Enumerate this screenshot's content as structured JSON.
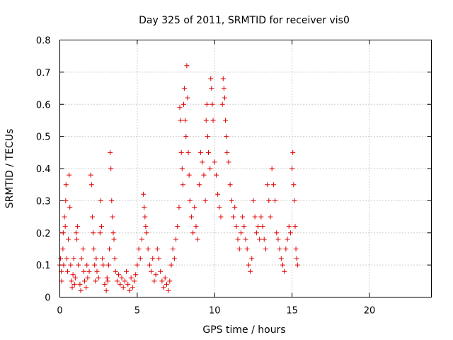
{
  "chart_data": {
    "type": "scatter",
    "title": "Day 325 of 2011, SRMTID for receiver vis0",
    "xlabel": "GPS time / hours",
    "ylabel": "SRMTID / TECUs",
    "xlim": [
      0,
      24
    ],
    "ylim": [
      0,
      0.8
    ],
    "xticks": [
      0,
      5,
      10,
      15,
      20
    ],
    "xtick_labels": [
      "0",
      "5",
      "10",
      "15",
      "20"
    ],
    "yticks": [
      0,
      0.1,
      0.2,
      0.3,
      0.4,
      0.5,
      0.6,
      0.7,
      0.8
    ],
    "ytick_labels": [
      "0",
      "0.1",
      "0.2",
      "0.3",
      "0.4",
      "0.5",
      "0.6",
      "0.7",
      "0.8"
    ],
    "grid": true,
    "marker": "+",
    "color": "#e00000",
    "series": [
      {
        "name": "vis0",
        "points": [
          [
            0.0,
            0.1
          ],
          [
            0.05,
            0.12
          ],
          [
            0.1,
            0.08
          ],
          [
            0.12,
            0.05
          ],
          [
            0.2,
            0.15
          ],
          [
            0.22,
            0.2
          ],
          [
            0.25,
            0.1
          ],
          [
            0.3,
            0.25
          ],
          [
            0.35,
            0.22
          ],
          [
            0.38,
            0.3
          ],
          [
            0.4,
            0.35
          ],
          [
            0.45,
            0.12
          ],
          [
            0.5,
            0.08
          ],
          [
            0.55,
            0.18
          ],
          [
            0.6,
            0.38
          ],
          [
            0.65,
            0.28
          ],
          [
            0.7,
            0.1
          ],
          [
            0.75,
            0.05
          ],
          [
            0.8,
            0.03
          ],
          [
            0.85,
            0.07
          ],
          [
            0.9,
            0.12
          ],
          [
            0.95,
            0.04
          ],
          [
            1.0,
            0.06
          ],
          [
            1.05,
            0.2
          ],
          [
            1.1,
            0.18
          ],
          [
            1.15,
            0.22
          ],
          [
            1.2,
            0.1
          ],
          [
            1.3,
            0.04
          ],
          [
            1.35,
            0.02
          ],
          [
            1.4,
            0.12
          ],
          [
            1.5,
            0.15
          ],
          [
            1.55,
            0.08
          ],
          [
            1.6,
            0.05
          ],
          [
            1.7,
            0.03
          ],
          [
            1.75,
            0.1
          ],
          [
            1.8,
            0.06
          ],
          [
            1.9,
            0.08
          ],
          [
            2.0,
            0.38
          ],
          [
            2.05,
            0.35
          ],
          [
            2.1,
            0.25
          ],
          [
            2.15,
            0.2
          ],
          [
            2.2,
            0.15
          ],
          [
            2.25,
            0.1
          ],
          [
            2.3,
            0.05
          ],
          [
            2.35,
            0.12
          ],
          [
            2.4,
            0.08
          ],
          [
            2.5,
            0.06
          ],
          [
            2.6,
            0.2
          ],
          [
            2.65,
            0.3
          ],
          [
            2.7,
            0.22
          ],
          [
            2.75,
            0.12
          ],
          [
            2.8,
            0.1
          ],
          [
            2.9,
            0.04
          ],
          [
            3.0,
            0.02
          ],
          [
            3.05,
            0.06
          ],
          [
            3.1,
            0.05
          ],
          [
            3.15,
            0.1
          ],
          [
            3.2,
            0.15
          ],
          [
            3.25,
            0.45
          ],
          [
            3.3,
            0.4
          ],
          [
            3.35,
            0.3
          ],
          [
            3.4,
            0.25
          ],
          [
            3.45,
            0.2
          ],
          [
            3.5,
            0.18
          ],
          [
            3.55,
            0.12
          ],
          [
            3.6,
            0.08
          ],
          [
            3.7,
            0.05
          ],
          [
            3.8,
            0.07
          ],
          [
            3.9,
            0.04
          ],
          [
            4.0,
            0.06
          ],
          [
            4.1,
            0.03
          ],
          [
            4.2,
            0.05
          ],
          [
            4.3,
            0.08
          ],
          [
            4.4,
            0.04
          ],
          [
            4.5,
            0.02
          ],
          [
            4.6,
            0.06
          ],
          [
            4.7,
            0.03
          ],
          [
            4.8,
            0.05
          ],
          [
            4.9,
            0.07
          ],
          [
            5.0,
            0.1
          ],
          [
            5.1,
            0.15
          ],
          [
            5.2,
            0.12
          ],
          [
            5.3,
            0.18
          ],
          [
            5.4,
            0.32
          ],
          [
            5.45,
            0.28
          ],
          [
            5.5,
            0.25
          ],
          [
            5.55,
            0.22
          ],
          [
            5.6,
            0.2
          ],
          [
            5.7,
            0.15
          ],
          [
            5.8,
            0.1
          ],
          [
            5.9,
            0.08
          ],
          [
            6.0,
            0.12
          ],
          [
            6.1,
            0.05
          ],
          [
            6.2,
            0.07
          ],
          [
            6.3,
            0.15
          ],
          [
            6.4,
            0.12
          ],
          [
            6.5,
            0.08
          ],
          [
            6.6,
            0.05
          ],
          [
            6.7,
            0.03
          ],
          [
            6.8,
            0.06
          ],
          [
            6.9,
            0.04
          ],
          [
            7.0,
            0.02
          ],
          [
            7.1,
            0.05
          ],
          [
            7.2,
            0.1
          ],
          [
            7.3,
            0.15
          ],
          [
            7.4,
            0.12
          ],
          [
            7.5,
            0.18
          ],
          [
            7.6,
            0.22
          ],
          [
            7.7,
            0.28
          ],
          [
            7.75,
            0.59
          ],
          [
            7.8,
            0.55
          ],
          [
            7.85,
            0.45
          ],
          [
            7.9,
            0.4
          ],
          [
            7.95,
            0.35
          ],
          [
            8.0,
            0.6
          ],
          [
            8.05,
            0.65
          ],
          [
            8.1,
            0.55
          ],
          [
            8.15,
            0.5
          ],
          [
            8.2,
            0.72
          ],
          [
            8.25,
            0.62
          ],
          [
            8.3,
            0.45
          ],
          [
            8.35,
            0.38
          ],
          [
            8.4,
            0.3
          ],
          [
            8.5,
            0.25
          ],
          [
            8.6,
            0.2
          ],
          [
            8.7,
            0.28
          ],
          [
            8.8,
            0.22
          ],
          [
            8.9,
            0.18
          ],
          [
            9.0,
            0.35
          ],
          [
            9.1,
            0.45
          ],
          [
            9.2,
            0.42
          ],
          [
            9.3,
            0.38
          ],
          [
            9.4,
            0.3
          ],
          [
            9.45,
            0.55
          ],
          [
            9.5,
            0.6
          ],
          [
            9.55,
            0.5
          ],
          [
            9.6,
            0.45
          ],
          [
            9.7,
            0.4
          ],
          [
            9.75,
            0.68
          ],
          [
            9.8,
            0.65
          ],
          [
            9.85,
            0.6
          ],
          [
            9.9,
            0.55
          ],
          [
            10.0,
            0.42
          ],
          [
            10.1,
            0.38
          ],
          [
            10.2,
            0.32
          ],
          [
            10.3,
            0.28
          ],
          [
            10.4,
            0.25
          ],
          [
            10.5,
            0.6
          ],
          [
            10.55,
            0.68
          ],
          [
            10.6,
            0.65
          ],
          [
            10.65,
            0.62
          ],
          [
            10.7,
            0.55
          ],
          [
            10.75,
            0.5
          ],
          [
            10.8,
            0.45
          ],
          [
            10.9,
            0.42
          ],
          [
            11.0,
            0.35
          ],
          [
            11.1,
            0.3
          ],
          [
            11.2,
            0.25
          ],
          [
            11.3,
            0.28
          ],
          [
            11.4,
            0.22
          ],
          [
            11.5,
            0.18
          ],
          [
            11.6,
            0.15
          ],
          [
            11.7,
            0.2
          ],
          [
            11.8,
            0.25
          ],
          [
            11.9,
            0.22
          ],
          [
            12.0,
            0.18
          ],
          [
            12.1,
            0.15
          ],
          [
            12.2,
            0.1
          ],
          [
            12.3,
            0.08
          ],
          [
            12.4,
            0.12
          ],
          [
            12.5,
            0.3
          ],
          [
            12.6,
            0.25
          ],
          [
            12.7,
            0.2
          ],
          [
            12.8,
            0.22
          ],
          [
            12.9,
            0.18
          ],
          [
            13.0,
            0.25
          ],
          [
            13.1,
            0.22
          ],
          [
            13.2,
            0.18
          ],
          [
            13.3,
            0.15
          ],
          [
            13.4,
            0.35
          ],
          [
            13.5,
            0.3
          ],
          [
            13.6,
            0.25
          ],
          [
            13.7,
            0.4
          ],
          [
            13.8,
            0.35
          ],
          [
            13.9,
            0.3
          ],
          [
            14.0,
            0.2
          ],
          [
            14.1,
            0.18
          ],
          [
            14.2,
            0.15
          ],
          [
            14.3,
            0.12
          ],
          [
            14.4,
            0.1
          ],
          [
            14.5,
            0.08
          ],
          [
            14.6,
            0.15
          ],
          [
            14.7,
            0.18
          ],
          [
            14.8,
            0.22
          ],
          [
            14.9,
            0.2
          ],
          [
            15.0,
            0.4
          ],
          [
            15.05,
            0.45
          ],
          [
            15.1,
            0.35
          ],
          [
            15.15,
            0.3
          ],
          [
            15.2,
            0.22
          ],
          [
            15.25,
            0.15
          ],
          [
            15.3,
            0.12
          ],
          [
            15.35,
            0.1
          ]
        ]
      }
    ]
  }
}
